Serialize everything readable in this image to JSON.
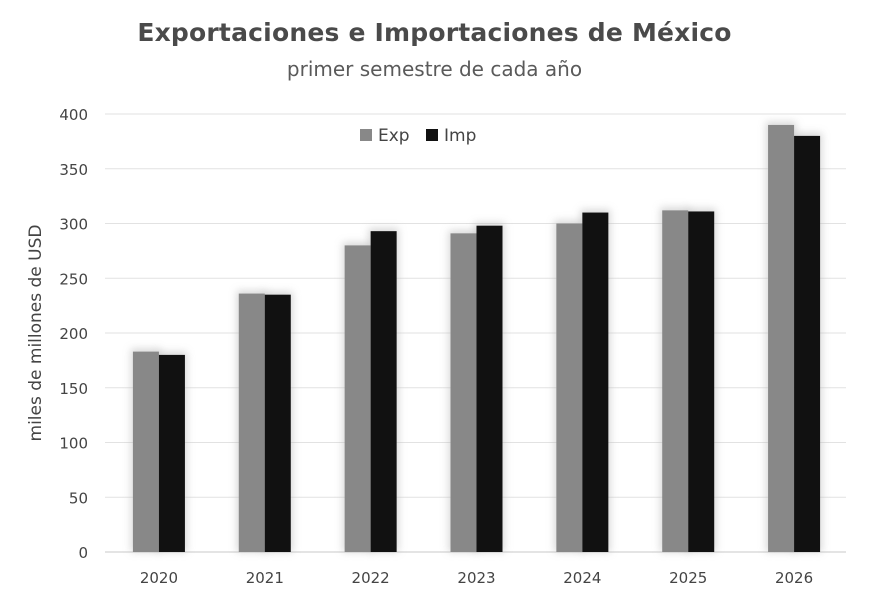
{
  "chart_data": {
    "type": "bar",
    "title": "Exportaciones e Importaciones de México",
    "subtitle": "primer semestre de cada año",
    "xlabel": "",
    "ylabel": "miles de millones de USD",
    "categories": [
      "2020",
      "2021",
      "2022",
      "2023",
      "2024",
      "2025",
      "2026"
    ],
    "series": [
      {
        "name": "Exp",
        "values": [
          183,
          236,
          280,
          291,
          300,
          312,
          390
        ],
        "color": "#888888"
      },
      {
        "name": "Imp",
        "values": [
          180,
          235,
          293,
          298,
          310,
          311,
          380
        ],
        "color": "#111111"
      }
    ],
    "ylim": [
      0,
      400
    ],
    "yticks": [
      0,
      50,
      100,
      150,
      200,
      250,
      300,
      350,
      400
    ],
    "grid": true,
    "legend": "top-center"
  }
}
